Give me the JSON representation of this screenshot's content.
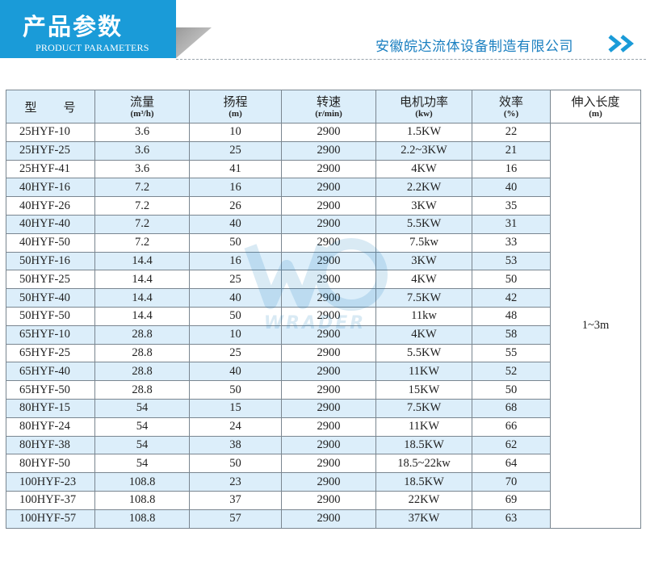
{
  "header": {
    "title": "产品参数",
    "subtitle": "PRODUCT PARAMETERS",
    "company": "安徽皖达流体设备制造有限公司"
  },
  "colors": {
    "accent": "#1a9bd8",
    "row_stripe": "#dceefa",
    "company_text": "#1a7fc0"
  },
  "watermark": {
    "text": "WRADER"
  },
  "table": {
    "headers": {
      "model": "型　　号",
      "flow": {
        "label": "流量",
        "unit": "(m³/h)"
      },
      "head": {
        "label": "扬程",
        "unit": "(m)"
      },
      "speed": {
        "label": "转速",
        "unit": "(r/min)"
      },
      "power": {
        "label": "电机功率",
        "unit": "(kw)"
      },
      "efficiency": {
        "label": "效率",
        "unit": "(%)"
      },
      "length": {
        "label": "伸入长度",
        "unit": "(m)"
      }
    },
    "insertion_length": "1~3m",
    "rows": [
      [
        "25HYF-10",
        "3.6",
        "10",
        "2900",
        "1.5KW",
        "22"
      ],
      [
        "25HYF-25",
        "3.6",
        "25",
        "2900",
        "2.2~3KW",
        "21"
      ],
      [
        "25HYF-41",
        "3.6",
        "41",
        "2900",
        "4KW",
        "16"
      ],
      [
        "40HYF-16",
        "7.2",
        "16",
        "2900",
        "2.2KW",
        "40"
      ],
      [
        "40HYF-26",
        "7.2",
        "26",
        "2900",
        "3KW",
        "35"
      ],
      [
        "40HYF-40",
        "7.2",
        "40",
        "2900",
        "5.5KW",
        "31"
      ],
      [
        "40HYF-50",
        "7.2",
        "50",
        "2900",
        "7.5kw",
        "33"
      ],
      [
        "50HYF-16",
        "14.4",
        "16",
        "2900",
        "3KW",
        "53"
      ],
      [
        "50HYF-25",
        "14.4",
        "25",
        "2900",
        "4KW",
        "50"
      ],
      [
        "50HYF-40",
        "14.4",
        "40",
        "2900",
        "7.5KW",
        "42"
      ],
      [
        "50HYF-50",
        "14.4",
        "50",
        "2900",
        "11kw",
        "48"
      ],
      [
        "65HYF-10",
        "28.8",
        "10",
        "2900",
        "4KW",
        "58"
      ],
      [
        "65HYF-25",
        "28.8",
        "25",
        "2900",
        "5.5KW",
        "55"
      ],
      [
        "65HYF-40",
        "28.8",
        "40",
        "2900",
        "11KW",
        "52"
      ],
      [
        "65HYF-50",
        "28.8",
        "50",
        "2900",
        "15KW",
        "50"
      ],
      [
        "80HYF-15",
        "54",
        "15",
        "2900",
        "7.5KW",
        "68"
      ],
      [
        "80HYF-24",
        "54",
        "24",
        "2900",
        "11KW",
        "66"
      ],
      [
        "80HYF-38",
        "54",
        "38",
        "2900",
        "18.5KW",
        "62"
      ],
      [
        "80HYF-50",
        "54",
        "50",
        "2900",
        "18.5~22kw",
        "64"
      ],
      [
        "100HYF-23",
        "108.8",
        "23",
        "2900",
        "18.5KW",
        "70"
      ],
      [
        "100HYF-37",
        "108.8",
        "37",
        "2900",
        "22KW",
        "69"
      ],
      [
        "100HYF-57",
        "108.8",
        "57",
        "2900",
        "37KW",
        "63"
      ]
    ]
  }
}
